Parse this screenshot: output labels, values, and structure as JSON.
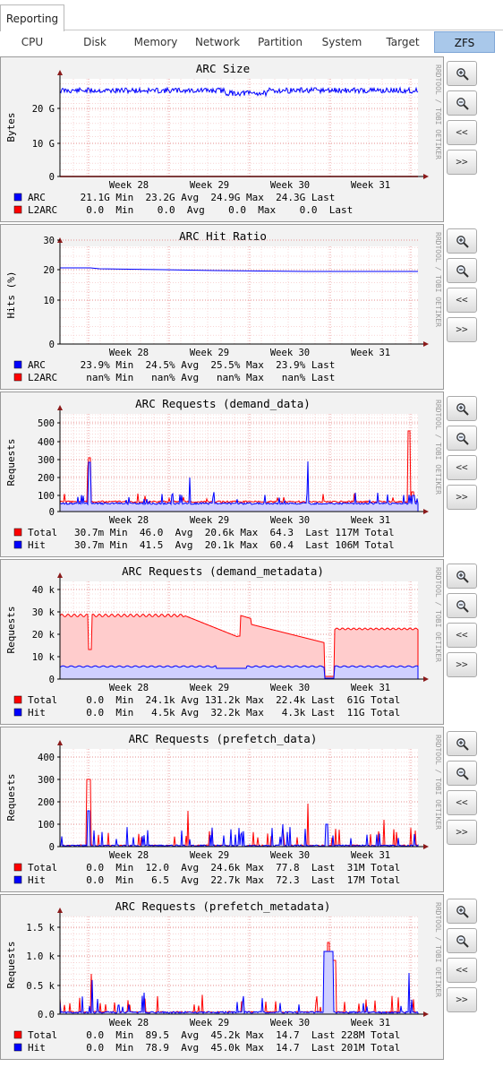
{
  "main_tab": "Reporting",
  "subtabs": [
    "CPU",
    "Disk",
    "Memory",
    "Network",
    "Partition",
    "System",
    "Target",
    "ZFS"
  ],
  "active_subtab": "ZFS",
  "side_text": "RRDTOOL / TOBI OETIKER",
  "buttons": {
    "zoom_in": "zoom-in",
    "zoom_out": "zoom-out",
    "back": "<<",
    "forward": ">>"
  },
  "colors": {
    "blue": "#0000ff",
    "red": "#ff0000",
    "active_tab": "#a9c8ea"
  },
  "graphs": [
    {
      "title": "ARC Size",
      "ylabel": "Bytes",
      "yticks": [
        "0",
        "10 G",
        "20 G"
      ],
      "xticks": [
        "Week 28",
        "Week 29",
        "Week 30",
        "Week 31"
      ],
      "legend": [
        {
          "name": "ARC",
          "color": "#0000ff",
          "text": " 21.1G Min  23.2G Avg  24.9G Max  24.3G Last"
        },
        {
          "name": "L2ARC",
          "color": "#ff0000",
          "text": "  0.0  Min    0.0  Avg    0.0  Max    0.0  Last"
        }
      ]
    },
    {
      "title": "ARC Hit Ratio",
      "ylabel": "Hits (%)",
      "yticks": [
        "0",
        "10",
        "20",
        "30"
      ],
      "xticks": [
        "Week 28",
        "Week 29",
        "Week 30",
        "Week 31"
      ],
      "legend": [
        {
          "name": "ARC",
          "color": "#0000ff",
          "text": " 23.9% Min  24.5% Avg  25.5% Max  23.9% Last"
        },
        {
          "name": "L2ARC",
          "color": "#ff0000",
          "text": "  nan% Min   nan% Avg   nan% Max   nan% Last"
        }
      ]
    },
    {
      "title": "ARC Requests (demand_data)",
      "ylabel": "Requests",
      "yticks": [
        "0",
        "100",
        "200",
        "300",
        "400",
        "500"
      ],
      "xticks": [
        "Week 28",
        "Week 29",
        "Week 30",
        "Week 31"
      ],
      "legend": [
        {
          "name": "Total",
          "color": "#ff0000",
          "text": "30.7m Min  46.0  Avg  20.6k Max  64.3  Last 117M Total"
        },
        {
          "name": "Hit",
          "color": "#0000ff",
          "text": "30.7m Min  41.5  Avg  20.1k Max  60.4  Last 106M Total"
        }
      ]
    },
    {
      "title": "ARC Requests (demand_metadata)",
      "ylabel": "Requests",
      "yticks": [
        "0",
        "10 k",
        "20 k",
        "30 k",
        "40 k"
      ],
      "xticks": [
        "Week 28",
        "Week 29",
        "Week 30",
        "Week 31"
      ],
      "legend": [
        {
          "name": "Total",
          "color": "#ff0000",
          "text": "  0.0  Min  24.1k Avg 131.2k Max  22.4k Last  61G Total"
        },
        {
          "name": "Hit",
          "color": "#0000ff",
          "text": "  0.0  Min   4.5k Avg  32.2k Max   4.3k Last  11G Total"
        }
      ]
    },
    {
      "title": "ARC Requests (prefetch_data)",
      "ylabel": "Requests",
      "yticks": [
        "0",
        "100",
        "200",
        "300",
        "400"
      ],
      "xticks": [
        "Week 28",
        "Week 29",
        "Week 30",
        "Week 31"
      ],
      "legend": [
        {
          "name": "Total",
          "color": "#ff0000",
          "text": "  0.0  Min  12.0  Avg  24.6k Max  77.8  Last  31M Total"
        },
        {
          "name": "Hit",
          "color": "#0000ff",
          "text": "  0.0  Min   6.5  Avg  22.7k Max  72.3  Last  17M Total"
        }
      ]
    },
    {
      "title": "ARC Requests (prefetch_metadata)",
      "ylabel": "Requests",
      "yticks": [
        "0.0",
        "0.5 k",
        "1.0 k",
        "1.5 k"
      ],
      "xticks": [
        "Week 28",
        "Week 29",
        "Week 30",
        "Week 31"
      ],
      "legend": [
        {
          "name": "Total",
          "color": "#ff0000",
          "text": "  0.0  Min  89.5  Avg  45.2k Max  14.7  Last 228M Total"
        },
        {
          "name": "Hit",
          "color": "#0000ff",
          "text": "  0.0  Min  78.9  Avg  45.0k Max  14.7  Last 201M Total"
        }
      ]
    }
  ]
}
